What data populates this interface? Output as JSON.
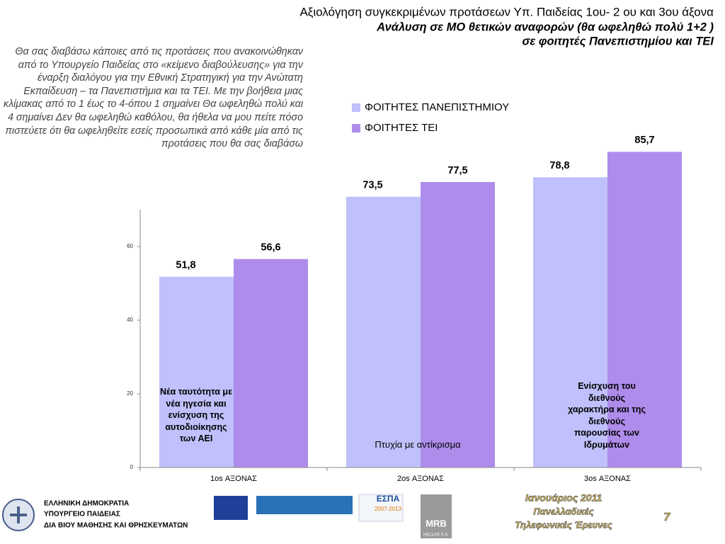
{
  "header": {
    "title": "Αξιολόγηση συγκεκριμένων προτάσεων Υπ. Παιδείας 1ου- 2 ου και 3ου άξονα",
    "subtitle_lines": [
      "Ανάλυση σε ΜΟ θετικών αναφορών (θα ωφεληθώ πολύ 1+2 )",
      "σε φοιτητές Πανεπιστημίου και ΤΕΙ"
    ]
  },
  "intro": "Θα σας διαβάσω κάποιες από τις προτάσεις που ανακοινώθηκαν από το Υπουργείο Παιδείας στο «κείμενο διαβούλευσης» για την έναρξη διαλόγου για την Εθνική Στρατηγική για την Ανώτατη Εκπαίδευση – τα Πανεπιστήμια και τα ΤΕΙ. Με την βοήθεια μιας κλίμακας από το 1 έως το 4-όπου 1 σημαίνει Θα ωφεληθώ πολύ και 4 σημαίνει Δεν θα ωφεληθώ καθόλου, θα ήθελα να μου πείτε πόσο πιστεύετε ότι θα ωφεληθείτε εσείς προσωπικά από κάθε μία από τις προτάσεις που θα σας διαβάσω",
  "chart_data": {
    "type": "bar",
    "categories": [
      "1os ΑΞΟΝΑΣ",
      "2os ΑΞΟΝΑΣ",
      "3os ΑΞΟΝΑΣ"
    ],
    "series": [
      {
        "name": "ΦΟΙΤΗΤΕΣ ΠΑΝΕΠΙΣΤΗΜΙΟΥ",
        "color": "#c0c0fc",
        "values": [
          51.8,
          73.5,
          78.8
        ],
        "value_labels": [
          "51,8",
          "73,5",
          "78,8"
        ]
      },
      {
        "name": "ΦΟΙΤΗΤΕΣ ΤΕΙ",
        "color": "#ae8ceb",
        "values": [
          56.6,
          77.5,
          85.7
        ],
        "value_labels": [
          "56,6",
          "77,5",
          "85,7"
        ]
      }
    ],
    "ylim": [
      0,
      70
    ],
    "yticks": [
      0,
      20,
      40,
      60
    ],
    "annotations": [
      "Νέα ταυτότητα με νέα ηγεσία και ενίσχυση της αυτοδιοίκησης των ΑΕΙ",
      "Πτυχία με αντίκρισμα",
      "Ενίσχυση του διεθνούς χαρακτήρα και της διεθνούς παρουσίας των Ιδρυμάτων"
    ]
  },
  "footer": {
    "ministry_lines": [
      "ΕΛΛΗΝΙΚΗ ΔΗΜΟΚΡΑΤΙΑ",
      "ΥΠΟΥΡΓΕΙΟ ΠΑΙΔΕΙΑΣ",
      "ΔΙΑ ΒΙΟΥ ΜΑΘΗΣΗΣ ΚΑΙ ΘΡΗΣΚΕΥΜΑΤΩΝ"
    ],
    "espa": "ΕΣΠΑ",
    "espa_years": "2007-2013",
    "mrb": "MRB",
    "mrb_sub": "HELLAS S.A.",
    "date_lines": [
      "Ιανουάριος 2011",
      "Πανελλαδικές",
      "Τηλεφωνικές Έρευνες"
    ],
    "page": "7"
  }
}
